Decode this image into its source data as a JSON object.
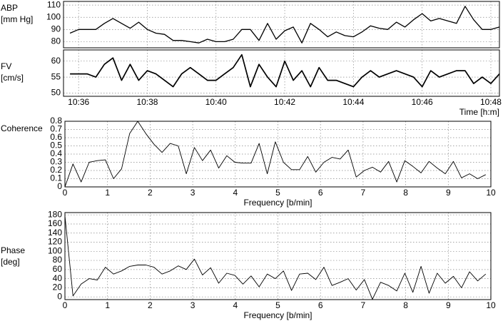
{
  "chart_data": [
    {
      "type": "line",
      "ylabel": [
        "ABP",
        "[mm Hg]"
      ],
      "color": "#000000",
      "grid": true,
      "x": [
        35.75,
        36,
        36.25,
        36.5,
        36.75,
        37,
        37.25,
        37.5,
        37.75,
        38,
        38.25,
        38.5,
        38.75,
        39,
        39.25,
        39.5,
        39.75,
        40,
        40.25,
        40.5,
        40.75,
        41,
        41.25,
        41.5,
        41.75,
        42,
        42.25,
        42.5,
        42.75,
        43,
        43.25,
        43.5,
        43.75,
        44,
        44.25,
        44.5,
        44.75,
        45,
        45.25,
        45.5,
        45.75,
        46,
        46.25,
        46.5,
        46.75,
        47,
        47.25,
        47.5,
        47.75,
        48,
        48.25
      ],
      "values": [
        87,
        90,
        90,
        90,
        95,
        99,
        95,
        91,
        96,
        90,
        87,
        86,
        81,
        81,
        80,
        79,
        82,
        80,
        80,
        82,
        90,
        90,
        81,
        95,
        82,
        89,
        92,
        79,
        95,
        90,
        84,
        88,
        85,
        84,
        88,
        93,
        91,
        90,
        96,
        92,
        98,
        103,
        97,
        99,
        97,
        95,
        109,
        98,
        90,
        90,
        92
      ],
      "xlim": [
        35.56,
        48.25
      ],
      "ylim": [
        75,
        113
      ],
      "yticks": [
        80,
        90,
        100,
        110
      ]
    },
    {
      "type": "line",
      "ylabel": [
        "FV",
        "[cm/s]"
      ],
      "xlabel": "Time [h:m]",
      "color": "#000000",
      "grid": true,
      "x": [
        35.75,
        36,
        36.25,
        36.5,
        36.75,
        37,
        37.25,
        37.5,
        37.75,
        38,
        38.25,
        38.5,
        38.75,
        39,
        39.25,
        39.5,
        39.75,
        40,
        40.25,
        40.5,
        40.75,
        41,
        41.25,
        41.5,
        41.75,
        42,
        42.25,
        42.5,
        42.75,
        43,
        43.25,
        43.5,
        43.75,
        44,
        44.25,
        44.5,
        44.75,
        45,
        45.25,
        45.5,
        45.75,
        46,
        46.25,
        46.5,
        46.75,
        47,
        47.25,
        47.5,
        47.75,
        48,
        48.25
      ],
      "values": [
        56,
        56,
        56,
        55,
        59,
        61,
        54,
        59,
        54,
        57,
        56,
        54,
        52,
        56,
        58,
        56,
        54,
        54,
        56,
        58,
        62,
        52,
        59,
        55,
        52,
        60,
        54,
        57,
        52,
        58,
        54,
        54,
        53,
        52,
        55,
        57,
        55,
        56,
        57,
        56,
        55,
        52,
        57,
        55,
        56,
        57,
        57,
        53,
        55,
        53,
        56
      ],
      "xlim": [
        35.56,
        48.25
      ],
      "ylim": [
        49,
        63.5
      ],
      "yticks": [
        50,
        55,
        60
      ],
      "xticks": [
        {
          "value": 36,
          "label": "10:36"
        },
        {
          "value": 38,
          "label": "10:38"
        },
        {
          "value": 40,
          "label": "10:40"
        },
        {
          "value": 42,
          "label": "10:42"
        },
        {
          "value": 44,
          "label": "10:44"
        },
        {
          "value": 46,
          "label": "10:46"
        },
        {
          "value": 48,
          "label": "10:48"
        }
      ]
    },
    {
      "type": "line",
      "ylabel": [
        "Coherence"
      ],
      "xlabel": "Frequency [b/min]",
      "color": "#000000",
      "grid": true,
      "x": [
        0,
        0.19,
        0.38,
        0.57,
        0.76,
        0.95,
        1.14,
        1.33,
        1.52,
        1.71,
        1.9,
        2.09,
        2.28,
        2.47,
        2.66,
        2.85,
        3.04,
        3.23,
        3.42,
        3.61,
        3.8,
        3.99,
        4.18,
        4.37,
        4.56,
        4.75,
        4.94,
        5.13,
        5.32,
        5.51,
        5.7,
        5.89,
        6.08,
        6.27,
        6.46,
        6.65,
        6.84,
        7.03,
        7.22,
        7.41,
        7.6,
        7.79,
        7.98,
        8.17,
        8.36,
        8.55,
        8.74,
        8.93,
        9.12,
        9.31,
        9.5,
        9.69,
        9.88
      ],
      "values": [
        0,
        0.28,
        0.06,
        0.3,
        0.32,
        0.33,
        0.1,
        0.22,
        0.65,
        0.8,
        0.65,
        0.52,
        0.42,
        0.53,
        0.5,
        0.16,
        0.48,
        0.32,
        0.45,
        0.23,
        0.38,
        0.3,
        0.29,
        0.29,
        0.53,
        0.16,
        0.55,
        0.3,
        0.21,
        0.21,
        0.37,
        0.18,
        0.3,
        0.36,
        0.34,
        0.45,
        0.12,
        0.2,
        0.24,
        0.18,
        0.31,
        0.06,
        0.32,
        0.25,
        0.17,
        0.31,
        0.23,
        0.16,
        0.31,
        0.11,
        0.16,
        0.1,
        0.15
      ],
      "xlim": [
        0,
        10
      ],
      "ylim": [
        0,
        0.8
      ],
      "yticks": [
        0,
        0.1,
        0.2,
        0.3,
        0.4,
        0.5,
        0.6,
        0.7,
        0.8
      ],
      "xticks": [
        0,
        1,
        2,
        3,
        4,
        5,
        6,
        7,
        8,
        9,
        10
      ]
    },
    {
      "type": "line",
      "ylabel": [
        "Phase",
        "[deg]"
      ],
      "xlabel": "Frequency [b/min]",
      "color": "#000000",
      "grid": true,
      "x": [
        0,
        0.19,
        0.38,
        0.57,
        0.76,
        0.95,
        1.14,
        1.33,
        1.52,
        1.71,
        1.9,
        2.09,
        2.28,
        2.47,
        2.66,
        2.85,
        3.04,
        3.23,
        3.42,
        3.61,
        3.8,
        3.99,
        4.18,
        4.37,
        4.56,
        4.75,
        4.94,
        5.13,
        5.32,
        5.51,
        5.7,
        5.89,
        6.08,
        6.27,
        6.46,
        6.65,
        6.84,
        7.03,
        7.22,
        7.41,
        7.6,
        7.79,
        7.98,
        8.17,
        8.36,
        8.55,
        8.74,
        8.93,
        9.12,
        9.31,
        9.5,
        9.69,
        9.88
      ],
      "values": [
        178,
        2,
        28,
        40,
        37,
        65,
        50,
        57,
        67,
        70,
        70,
        65,
        50,
        57,
        68,
        60,
        83,
        48,
        64,
        30,
        52,
        47,
        28,
        46,
        22,
        50,
        40,
        57,
        14,
        50,
        52,
        38,
        65,
        25,
        32,
        40,
        15,
        38,
        -5,
        32,
        25,
        13,
        52,
        10,
        67,
        8,
        52,
        30,
        45,
        20,
        55,
        35,
        50
      ],
      "xlim": [
        0,
        10
      ],
      "ylim": [
        -6,
        185
      ],
      "yticks": [
        0,
        20,
        40,
        60,
        80,
        100,
        120,
        140,
        160,
        180
      ],
      "xticks": [
        0,
        1,
        2,
        3,
        4,
        5,
        6,
        7,
        8,
        9,
        10
      ]
    }
  ]
}
